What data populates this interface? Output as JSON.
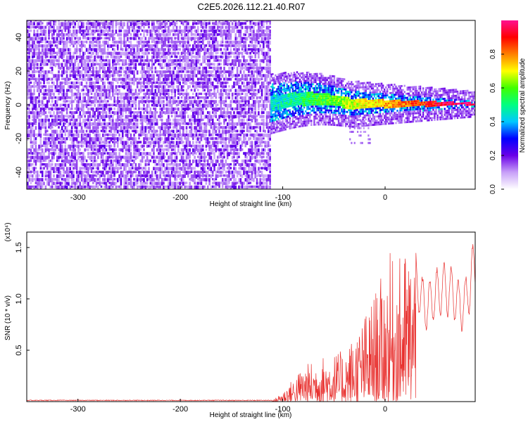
{
  "title": "C2E5.2026.112.21.40.R07",
  "chart_data": [
    {
      "type": "heatmap",
      "name": "spectrogram",
      "xlabel": "Height of straight line (km)",
      "ylabel": "Frequency (Hz)",
      "xlim": [
        -350,
        88
      ],
      "ylim": [
        -50,
        50
      ],
      "xticks": [
        -300,
        -200,
        -100,
        0
      ],
      "yticks": [
        -40,
        -20,
        0,
        20,
        40
      ],
      "noise_region_x": [
        -350,
        -112
      ],
      "signal_region_x": [
        -112,
        88
      ],
      "signal_center_freq": 0,
      "colorbar": {
        "label": "Normalized spectral amplitude",
        "range": [
          0.0,
          1.0
        ],
        "ticks": [
          0.0,
          0.2,
          0.4,
          0.6,
          0.8
        ],
        "colors": [
          "#ffffff",
          "#c8a0f8",
          "#6a00e8",
          "#0000ff",
          "#00c8ff",
          "#00ff80",
          "#40ff00",
          "#ffff00",
          "#ff8000",
          "#ff0000",
          "#ff1090"
        ]
      }
    },
    {
      "type": "line",
      "name": "snr",
      "xlabel": "Height of straight line (km)",
      "ylabel": "SNR (10 * v/v)",
      "ymultiplier": "(x10⁴)",
      "xlim": [
        -350,
        88
      ],
      "ylim": [
        0,
        1.65
      ],
      "xticks": [
        -300,
        -200,
        -100,
        0
      ],
      "yticks": [
        0.5,
        1.0,
        1.5
      ],
      "ytick_labels": [
        "0.5",
        "1.0",
        "1.5"
      ],
      "color": "#e8302e",
      "envelope": {
        "x": [
          -350,
          -110,
          -100,
          -80,
          -60,
          -40,
          -25,
          -15,
          -5,
          0,
          5,
          10,
          20,
          30,
          35,
          40,
          45,
          55,
          65,
          75,
          80,
          85,
          88
        ],
        "y": [
          0.01,
          0.01,
          0.1,
          0.35,
          0.45,
          0.5,
          0.75,
          0.95,
          1.2,
          1.25,
          1.45,
          1.35,
          1.5,
          1.48,
          1.25,
          1.1,
          1.2,
          1.35,
          1.3,
          1.1,
          1.25,
          1.5,
          1.6
        ]
      }
    }
  ]
}
